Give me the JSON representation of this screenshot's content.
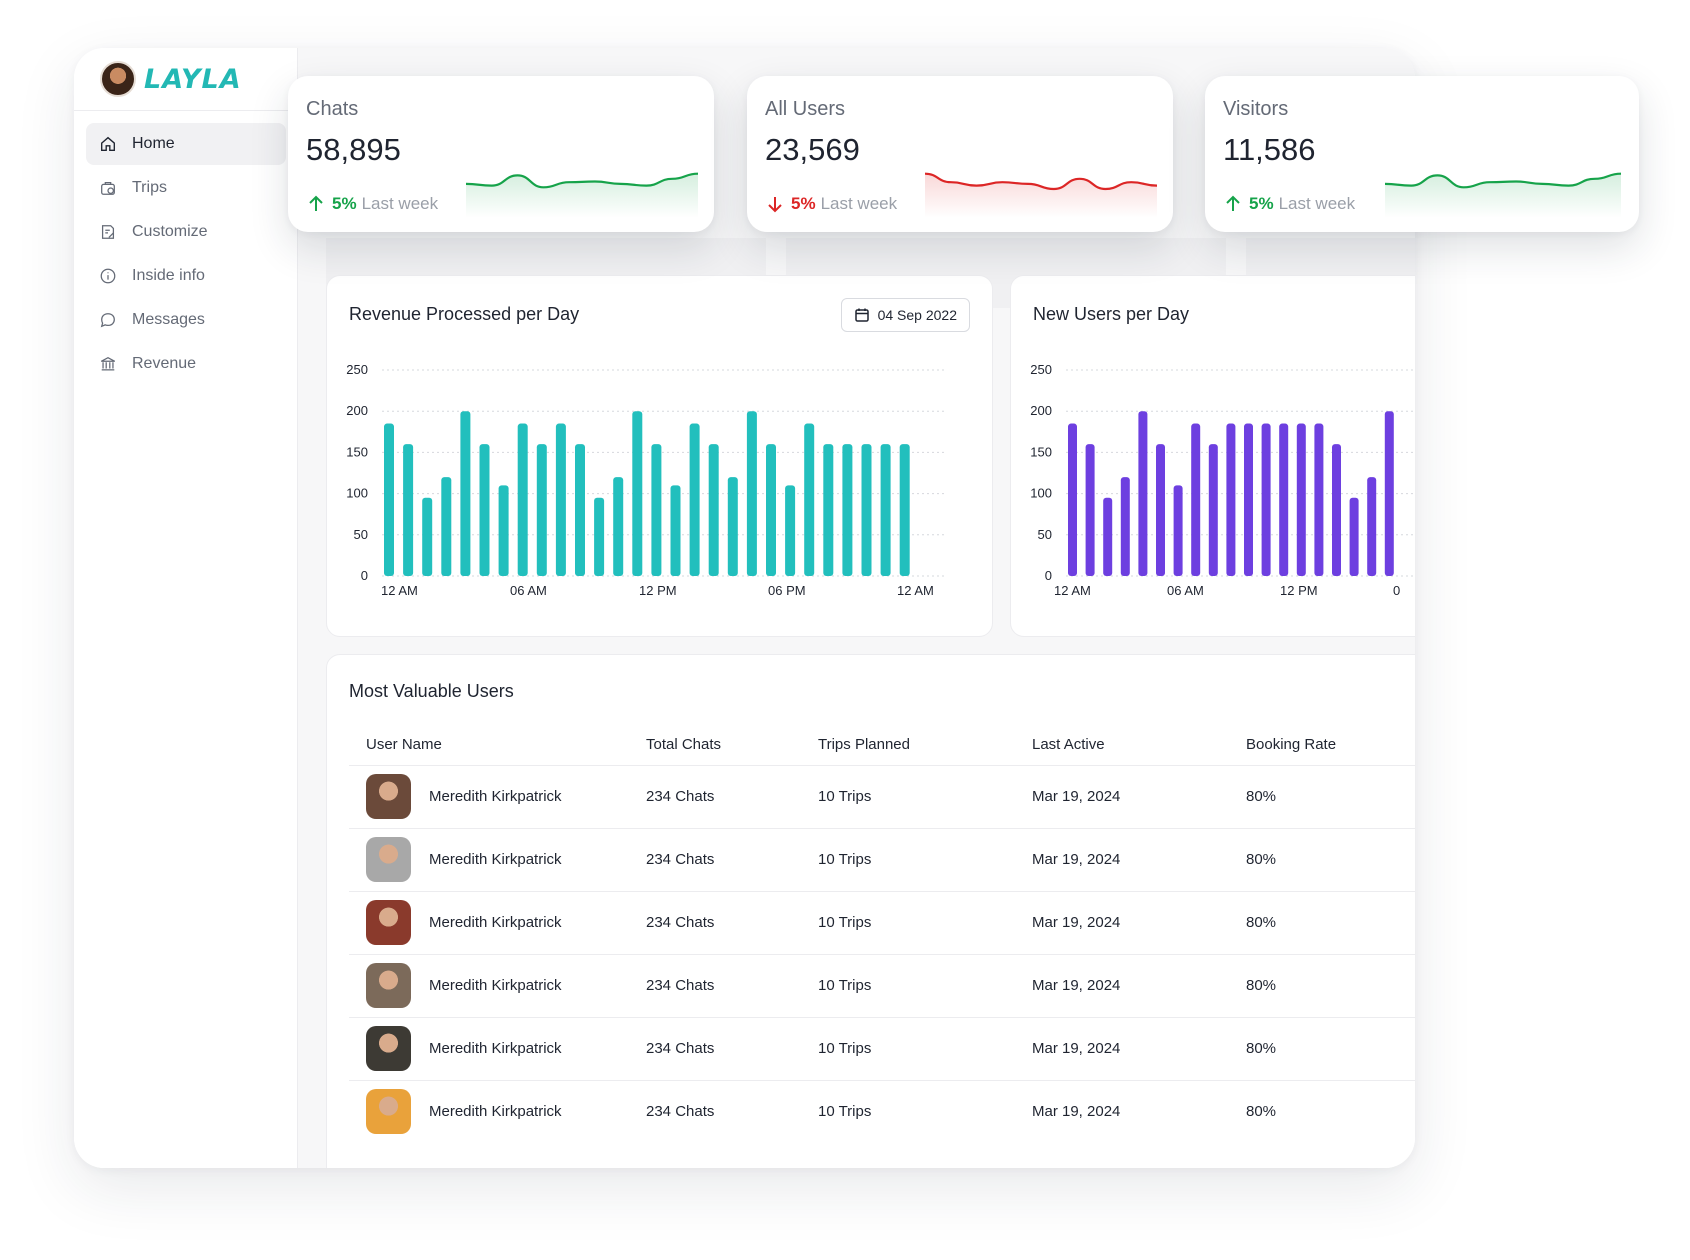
{
  "app": {
    "logo_text": "LAYLA"
  },
  "sidebar": {
    "items": [
      {
        "label": "Home",
        "icon": "home-icon",
        "active": true
      },
      {
        "label": "Trips",
        "icon": "suitcase-icon"
      },
      {
        "label": "Customize",
        "icon": "edit-document-icon"
      },
      {
        "label": "Inside info",
        "icon": "info-icon"
      },
      {
        "label": "Messages",
        "icon": "chat-bubble-icon"
      },
      {
        "label": "Revenue",
        "icon": "bank-icon"
      }
    ]
  },
  "stats": [
    {
      "label": "Chats",
      "value": "58,895",
      "delta": "5%",
      "note": "Last week",
      "trend": "up",
      "color": "#16a34a",
      "spark": [
        0.35,
        0.4,
        0.1,
        0.45,
        0.3,
        0.28,
        0.35,
        0.4,
        0.2,
        0.05
      ]
    },
    {
      "label": "All Users",
      "value": "23,569",
      "delta": "5%",
      "note": "Last week",
      "trend": "down",
      "color": "#dc2626",
      "spark": [
        0.05,
        0.3,
        0.4,
        0.3,
        0.35,
        0.5,
        0.2,
        0.5,
        0.3,
        0.4
      ]
    },
    {
      "label": "Visitors",
      "value": "11,586",
      "delta": "5%",
      "note": "Last week",
      "trend": "up",
      "color": "#16a34a",
      "spark": [
        0.35,
        0.4,
        0.1,
        0.45,
        0.3,
        0.28,
        0.35,
        0.4,
        0.2,
        0.05
      ]
    }
  ],
  "revenue_panel": {
    "title": "Revenue Processed per Day",
    "date": "04 Sep 2022"
  },
  "users_panel": {
    "title": "New Users per Day"
  },
  "chart_data": [
    {
      "type": "bar",
      "title": "Revenue Processed per Day",
      "color": "#22bfbd",
      "ylim": [
        0,
        250
      ],
      "yticks": [
        0,
        50,
        100,
        150,
        200,
        250
      ],
      "xtick_labels": [
        "12 AM",
        "06 AM",
        "12 PM",
        "06 PM",
        "12 AM"
      ],
      "values": [
        185,
        160,
        95,
        120,
        200,
        160,
        110,
        185,
        160,
        185,
        160,
        95,
        120,
        200,
        160,
        110,
        185,
        160,
        120,
        200,
        160,
        110,
        185,
        160,
        160,
        160,
        160,
        160
      ],
      "grid": true
    },
    {
      "type": "bar",
      "title": "New Users per Day",
      "color": "#6d3fe0",
      "ylim": [
        0,
        250
      ],
      "yticks": [
        0,
        50,
        100,
        150,
        200,
        250
      ],
      "xtick_labels": [
        "12 AM",
        "06 AM",
        "12 PM",
        "0"
      ],
      "values": [
        185,
        160,
        95,
        120,
        200,
        160,
        110,
        185,
        160,
        185,
        185,
        185,
        185,
        185,
        185,
        160,
        95,
        120,
        200
      ],
      "grid": true
    }
  ],
  "table": {
    "title": "Most Valuable Users",
    "headers": [
      "User Name",
      "Total Chats",
      "Trips Planned",
      "Last Active",
      "Booking Rate"
    ],
    "rows": [
      {
        "name": "Meredith Kirkpatrick",
        "chats": "234 Chats",
        "trips": "10 Trips",
        "last": "Mar 19, 2024",
        "rate": "80%",
        "avatar_color": "#6b4a3a"
      },
      {
        "name": "Meredith Kirkpatrick",
        "chats": "234 Chats",
        "trips": "10 Trips",
        "last": "Mar 19, 2024",
        "rate": "80%",
        "avatar_color": "#a8a8a8"
      },
      {
        "name": "Meredith Kirkpatrick",
        "chats": "234 Chats",
        "trips": "10 Trips",
        "last": "Mar 19, 2024",
        "rate": "80%",
        "avatar_color": "#8a3a2c"
      },
      {
        "name": "Meredith Kirkpatrick",
        "chats": "234 Chats",
        "trips": "10 Trips",
        "last": "Mar 19, 2024",
        "rate": "80%",
        "avatar_color": "#7c6a5a"
      },
      {
        "name": "Meredith Kirkpatrick",
        "chats": "234 Chats",
        "trips": "10 Trips",
        "last": "Mar 19, 2024",
        "rate": "80%",
        "avatar_color": "#3d3a34"
      },
      {
        "name": "Meredith Kirkpatrick",
        "chats": "234 Chats",
        "trips": "10 Trips",
        "last": "Mar 19, 2024",
        "rate": "80%",
        "avatar_color": "#e9a23b"
      }
    ]
  }
}
